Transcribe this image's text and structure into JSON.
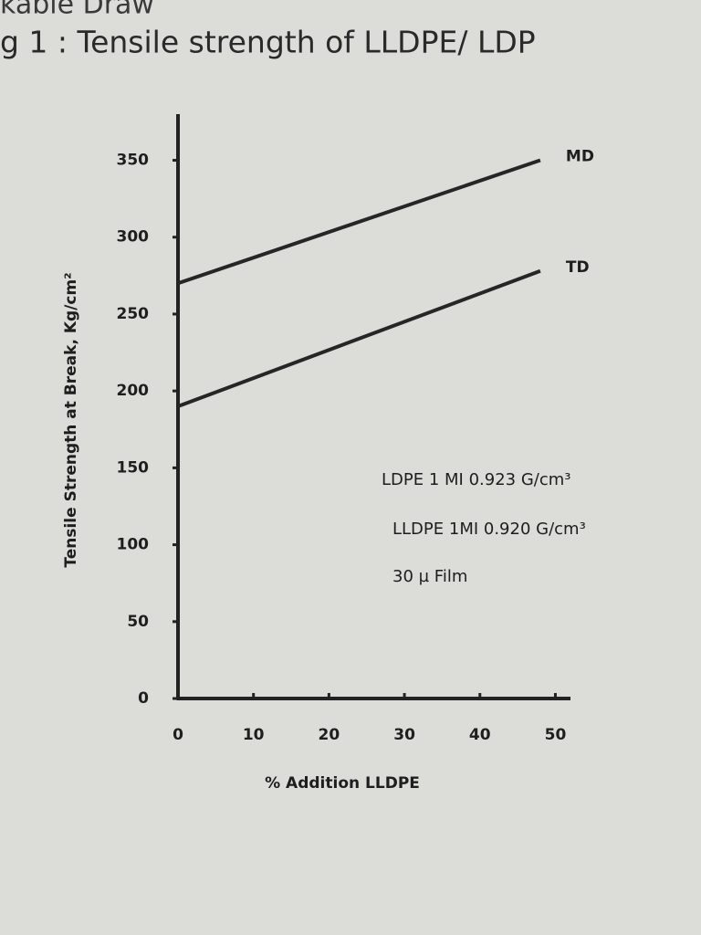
{
  "chart_data": {
    "type": "line",
    "header": "kable Draw",
    "title": "g 1 : Tensile strength of LLDPE/ LDP",
    "x_label": "% Addition LLDPE",
    "y_label": "Tensile Strength at Break, Kg/cm²",
    "x": [
      0,
      48
    ],
    "series": [
      {
        "name": "MD",
        "color": "#262626",
        "values": [
          270,
          350
        ]
      },
      {
        "name": "TD",
        "color": "#262626",
        "values": [
          190,
          278
        ]
      }
    ],
    "xlim": [
      0,
      52
    ],
    "xticks": [
      0,
      10,
      20,
      30,
      40,
      50
    ],
    "ylim": [
      0,
      380
    ],
    "yticks": [
      0,
      50,
      100,
      150,
      200,
      250,
      300,
      350
    ],
    "annotations": [
      "LDPE 1 MI 0.923 G/cm³",
      "LLDPE 1MI 0.920 G/cm³",
      "30 µ Film"
    ]
  }
}
